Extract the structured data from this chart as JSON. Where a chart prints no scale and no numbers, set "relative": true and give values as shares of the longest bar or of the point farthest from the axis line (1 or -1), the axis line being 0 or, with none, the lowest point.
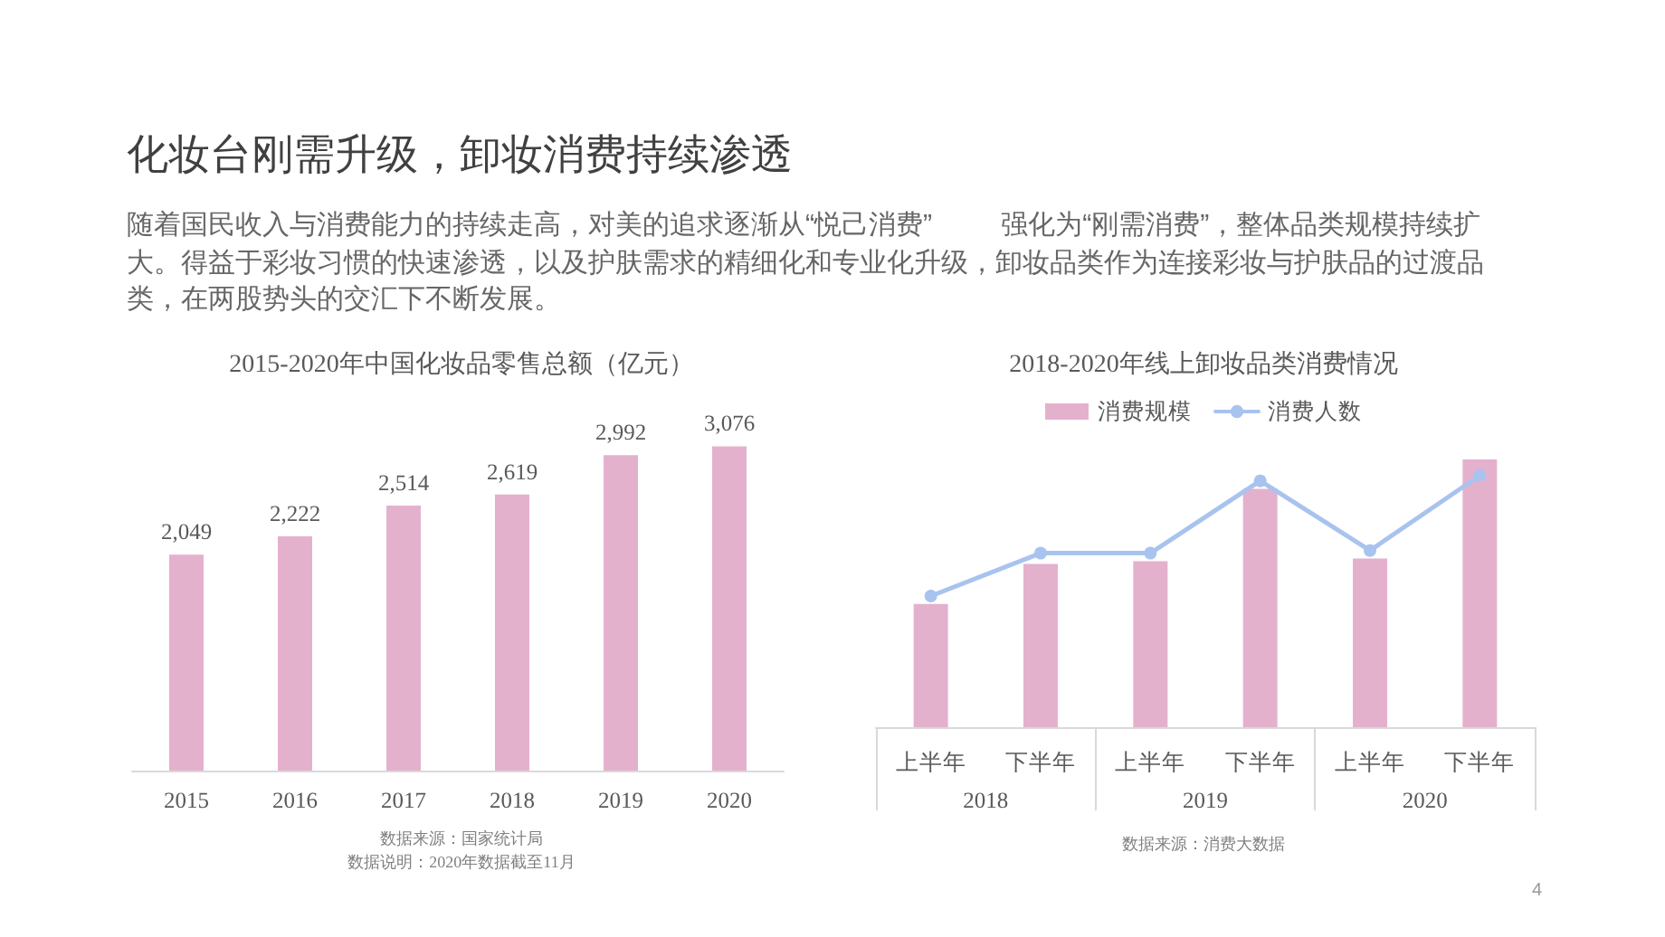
{
  "chart_data": [
    {
      "type": "other",
      "title": "化妆台刚需升级，卸妆消费持续渗透",
      "subtitle": "随着国民收入与消费能力的持续走高，对美的追求逐渐从“悦己消费” 强化为“刚需消费”，整体品类规模持续扩大。得益于彩妆习惯的快速渗透，以及护肤需求的精细化和专业化升级，卸妆品类作为连接彩妆与护肤品的过渡品类，在两股势头的交汇下不断发展。",
      "annotations": [
        "4"
      ]
    },
    {
      "type": "bar",
      "title": "2015-2020年中国化妆品零售总额（亿元）",
      "categories": [
        "2015",
        "2016",
        "2017",
        "2018",
        "2019",
        "2020"
      ],
      "values": [
        2049,
        2222,
        2514,
        2619,
        2992,
        3076
      ],
      "value_labels": [
        "2,049",
        "2,222",
        "2,514",
        "2,619",
        "2,992",
        "3,076"
      ],
      "color": "#e4b1cd",
      "tick_labels": "x",
      "annotations": [
        "数据来源：国家统计局",
        "数据说明：2020年数据截至11月"
      ]
    },
    {
      "type": "bar",
      "title": "2018-2020年线上卸妆品类消费情况",
      "categories": [
        "上半年",
        "下半年",
        "上半年",
        "下半年",
        "上半年",
        "下半年"
      ],
      "series": [
        {
          "name": "消费规模",
          "color": "#e4b1cd",
          "values": [
            0.46,
            0.61,
            0.62,
            0.89,
            0.63,
            1
          ]
        },
        {
          "name": "消费人数",
          "type": "line",
          "color": "#a9c3ef",
          "values": [
            0.49,
            0.65,
            0.65,
            0.92,
            0.66,
            0.94
          ]
        }
      ],
      "relative": true,
      "legend": "top",
      "marker": "circle",
      "annotations": [
        "2018",
        "2019",
        "2020",
        "数据来源：消费大数据"
      ]
    }
  ]
}
